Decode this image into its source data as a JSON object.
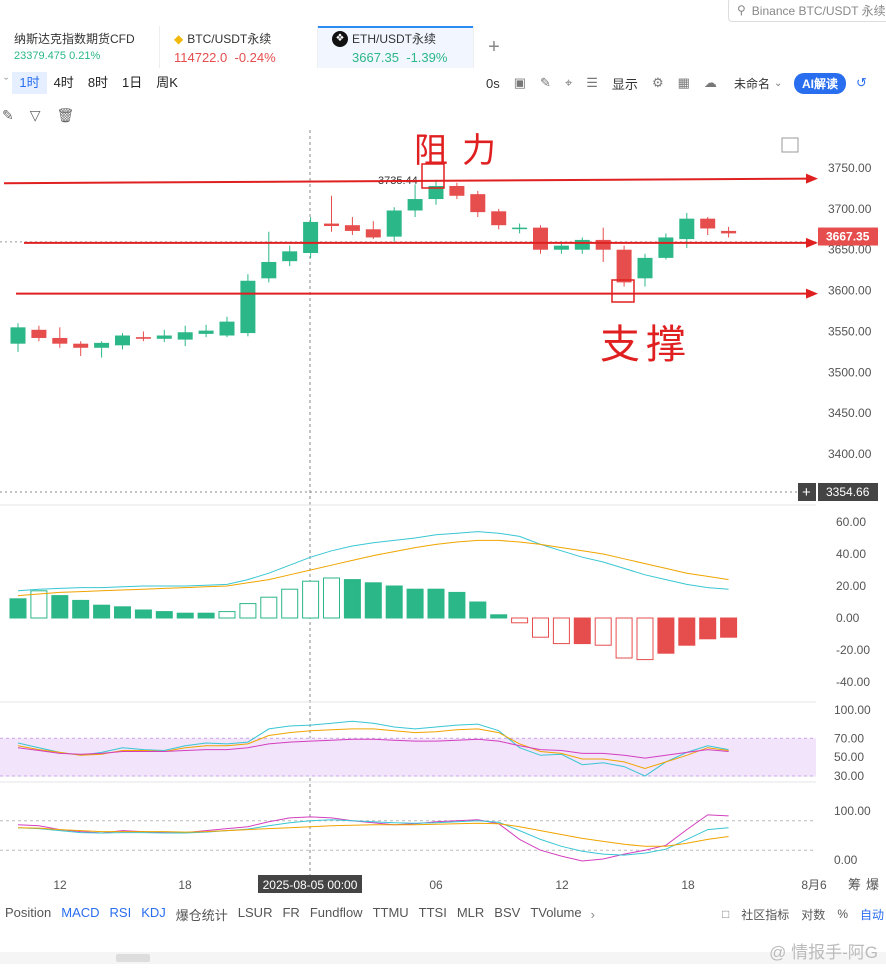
{
  "search": {
    "placeholder": "Binance BTC/USDT 永续"
  },
  "tabs": [
    {
      "name": "纳斯达克指数期货CFD",
      "price": "23379.475",
      "change": "0.21%",
      "direction": "up"
    },
    {
      "name": "BTC/USDT永续",
      "price": "114722.0",
      "change": "-0.24%",
      "direction": "down"
    },
    {
      "name": "ETH/USDT永续",
      "price": "3667.35",
      "change": "-1.39%",
      "direction": "down",
      "active": true
    }
  ],
  "toolbar": {
    "intervals": [
      "1时",
      "4时",
      "8时",
      "1日",
      "周K"
    ],
    "selected": "1时",
    "countdown": "0s",
    "display_label": "显示",
    "layout_name": "未命名",
    "ai_label": "AI解读"
  },
  "chart_data": {
    "type": "candlestick",
    "symbol": "ETH/USDT永续",
    "interval": "1h",
    "ylim": [
      3370,
      3780
    ],
    "price_ticks": [
      3750,
      3700,
      3650,
      3600,
      3550,
      3500,
      3450,
      3400
    ],
    "time_ticks": [
      "12",
      "18",
      "2025-08-05 00:00",
      "06",
      "12",
      "18",
      "8月6"
    ],
    "last_price": "3667.35",
    "crosshair_price": "3354.66",
    "high_marker": "3735.44",
    "candles": [
      {
        "o": 3535,
        "h": 3560,
        "l": 3525,
        "c": 3555
      },
      {
        "o": 3552,
        "h": 3557,
        "l": 3538,
        "c": 3542
      },
      {
        "o": 3542,
        "h": 3555,
        "l": 3530,
        "c": 3535
      },
      {
        "o": 3535,
        "h": 3538,
        "l": 3520,
        "c": 3530
      },
      {
        "o": 3530,
        "h": 3538,
        "l": 3518,
        "c": 3536
      },
      {
        "o": 3533,
        "h": 3548,
        "l": 3528,
        "c": 3545
      },
      {
        "o": 3543,
        "h": 3550,
        "l": 3538,
        "c": 3541
      },
      {
        "o": 3541,
        "h": 3552,
        "l": 3537,
        "c": 3545
      },
      {
        "o": 3540,
        "h": 3557,
        "l": 3532,
        "c": 3549
      },
      {
        "o": 3547,
        "h": 3558,
        "l": 3543,
        "c": 3551
      },
      {
        "o": 3545,
        "h": 3568,
        "l": 3543,
        "c": 3562
      },
      {
        "o": 3548,
        "h": 3620,
        "l": 3544,
        "c": 3612
      },
      {
        "o": 3615,
        "h": 3672,
        "l": 3610,
        "c": 3635
      },
      {
        "o": 3636,
        "h": 3655,
        "l": 3630,
        "c": 3648
      },
      {
        "o": 3646,
        "h": 3690,
        "l": 3640,
        "c": 3684
      },
      {
        "o": 3682,
        "h": 3716,
        "l": 3672,
        "c": 3679
      },
      {
        "o": 3680,
        "h": 3690,
        "l": 3668,
        "c": 3673
      },
      {
        "o": 3675,
        "h": 3685,
        "l": 3663,
        "c": 3665
      },
      {
        "o": 3666,
        "h": 3702,
        "l": 3660,
        "c": 3698
      },
      {
        "o": 3698,
        "h": 3730,
        "l": 3690,
        "c": 3712
      },
      {
        "o": 3712,
        "h": 3735.44,
        "l": 3705,
        "c": 3728
      },
      {
        "o": 3728,
        "h": 3732,
        "l": 3712,
        "c": 3716
      },
      {
        "o": 3718,
        "h": 3722,
        "l": 3690,
        "c": 3696
      },
      {
        "o": 3697,
        "h": 3700,
        "l": 3675,
        "c": 3680
      },
      {
        "o": 3676,
        "h": 3682,
        "l": 3670,
        "c": 3677
      },
      {
        "o": 3677,
        "h": 3680,
        "l": 3645,
        "c": 3650
      },
      {
        "o": 3650,
        "h": 3660,
        "l": 3645,
        "c": 3655
      },
      {
        "o": 3650,
        "h": 3665,
        "l": 3645,
        "c": 3662
      },
      {
        "o": 3662,
        "h": 3677,
        "l": 3635,
        "c": 3650
      },
      {
        "o": 3650,
        "h": 3655,
        "l": 3605,
        "c": 3610
      },
      {
        "o": 3615,
        "h": 3645,
        "l": 3605,
        "c": 3640
      },
      {
        "o": 3640,
        "h": 3670,
        "l": 3638,
        "c": 3665
      },
      {
        "o": 3663,
        "h": 3695,
        "l": 3652,
        "c": 3688
      },
      {
        "o": 3688,
        "h": 3690,
        "l": 3668,
        "c": 3676
      },
      {
        "o": 3673,
        "h": 3678,
        "l": 3665,
        "c": 3670
      }
    ],
    "annotations": {
      "resistance_text": "阻力",
      "support_text": "支撑",
      "lines": [
        3735,
        3662,
        3600
      ]
    },
    "macd": {
      "axis_ticks": [
        60,
        40,
        20,
        0,
        -20,
        -40
      ],
      "ylim": [
        -45,
        68
      ],
      "hist": [
        12,
        17,
        14,
        11,
        8,
        7,
        5,
        4,
        3,
        3,
        4,
        9,
        13,
        18,
        23,
        25,
        24,
        22,
        20,
        18,
        18,
        16,
        10,
        2,
        -3,
        -12,
        -16,
        -16,
        -17,
        -25,
        -26,
        -22,
        -17,
        -13,
        -12
      ],
      "dif": [
        17,
        18,
        18.5,
        19,
        19,
        19.5,
        20,
        20,
        20,
        20.5,
        21,
        24,
        28,
        33,
        38,
        42,
        45,
        47,
        48.5,
        50,
        52,
        53,
        54,
        53,
        51,
        46,
        42,
        38,
        35,
        31,
        27,
        24,
        21,
        19,
        18
      ],
      "dea": [
        14,
        15,
        16,
        16.5,
        17,
        17.5,
        18,
        18.5,
        19,
        19.5,
        20,
        22,
        24,
        27,
        30,
        33,
        36,
        39,
        41.5,
        44,
        46,
        47.5,
        48.5,
        48.5,
        47.5,
        46,
        44,
        42,
        40,
        37,
        34,
        31,
        28,
        26,
        24
      ]
    },
    "rsi": {
      "axis_ticks": [
        100,
        70,
        50,
        30
      ],
      "ylim": [
        20,
        110
      ],
      "band": [
        30,
        70
      ],
      "line1": [
        65,
        60,
        55,
        52,
        55,
        60,
        58,
        57,
        62,
        65,
        64,
        66,
        80,
        83,
        84,
        86,
        88,
        86,
        82,
        80,
        82,
        84,
        85,
        78,
        60,
        52,
        53,
        42,
        44,
        40,
        30,
        45,
        55,
        62,
        58
      ],
      "line2": [
        62,
        58,
        55,
        52,
        53,
        57,
        57,
        56,
        60,
        62,
        62,
        64,
        73,
        76,
        78,
        79,
        80,
        80,
        78,
        76,
        77,
        79,
        80,
        76,
        64,
        56,
        54,
        48,
        48,
        45,
        38,
        45,
        52,
        60,
        57
      ],
      "line3": [
        60,
        57,
        54,
        53,
        54,
        56,
        56,
        56,
        57,
        58,
        58,
        60,
        64,
        66,
        67,
        68,
        69,
        69,
        68,
        67,
        67,
        68,
        69,
        67,
        62,
        58,
        57,
        54,
        54,
        52,
        49,
        52,
        55,
        58,
        56
      ]
    },
    "kdj": {
      "axis_ticks": [
        100,
        0
      ],
      "ylim": [
        -15,
        140
      ],
      "k": [
        72,
        70,
        62,
        58,
        55,
        60,
        58,
        56,
        56,
        60,
        64,
        68,
        78,
        86,
        88,
        86,
        80,
        76,
        72,
        74,
        78,
        80,
        82,
        74,
        42,
        20,
        8,
        -2,
        2,
        12,
        20,
        30,
        62,
        92,
        90
      ],
      "d": [
        66,
        64,
        60,
        56,
        55,
        56,
        56,
        55,
        55,
        57,
        60,
        63,
        70,
        76,
        80,
        82,
        80,
        78,
        76,
        75,
        76,
        78,
        80,
        77,
        60,
        42,
        28,
        18,
        12,
        10,
        14,
        22,
        42,
        62,
        66
      ],
      "j": [
        66,
        65,
        62,
        60,
        58,
        58,
        58,
        58,
        57,
        58,
        60,
        62,
        64,
        66,
        68,
        70,
        71,
        72,
        72,
        72,
        73,
        74,
        75,
        74,
        68,
        60,
        52,
        44,
        38,
        32,
        28,
        28,
        34,
        42,
        48
      ]
    }
  },
  "bottom": {
    "indicators": [
      "Position",
      "MACD",
      "RSI",
      "KDJ",
      "爆仓统计",
      "LSUR",
      "FR",
      "Fundflow",
      "TTMU",
      "TTSI",
      "MLR",
      "BSV",
      "TVolume"
    ],
    "community": "社区指标",
    "log": "对数",
    "pct": "%",
    "auto": "自动",
    "chips": "筹",
    "liq": "爆"
  },
  "watermark": "@ 情报手-阿G"
}
